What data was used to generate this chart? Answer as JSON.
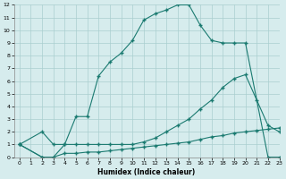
{
  "xlabel": "Humidex (Indice chaleur)",
  "background_color": "#d6eced",
  "grid_color": "#aacfcf",
  "line_color": "#1a7a70",
  "xlim": [
    -0.5,
    23
  ],
  "ylim": [
    0,
    12
  ],
  "xticks": [
    0,
    1,
    2,
    3,
    4,
    5,
    6,
    7,
    8,
    9,
    10,
    11,
    12,
    13,
    14,
    15,
    16,
    17,
    18,
    19,
    20,
    21,
    22,
    23
  ],
  "yticks": [
    0,
    1,
    2,
    3,
    4,
    5,
    6,
    7,
    8,
    9,
    10,
    11,
    12
  ],
  "line1_x": [
    0,
    2,
    3,
    4,
    5,
    6,
    7,
    8,
    9,
    10,
    11,
    12,
    13,
    14,
    15,
    16,
    17,
    18,
    19,
    20,
    22,
    23
  ],
  "line1_y": [
    1,
    2,
    1,
    1,
    3.2,
    3.2,
    6.4,
    7.5,
    8.2,
    9.2,
    10.8,
    11.3,
    11.6,
    12.0,
    12.0,
    10.4,
    9.2,
    9.0,
    9.0,
    9.0,
    0,
    0
  ],
  "line2_x": [
    0,
    2,
    3,
    4,
    5,
    6,
    7,
    8,
    9,
    10,
    11,
    12,
    13,
    14,
    15,
    16,
    17,
    18,
    19,
    20,
    21,
    22,
    23
  ],
  "line2_y": [
    1,
    0,
    0,
    1,
    1,
    1,
    1,
    1,
    1,
    1.0,
    1.2,
    1.5,
    2.0,
    2.5,
    3.0,
    3.8,
    4.5,
    5.5,
    6.2,
    6.5,
    4.5,
    2.5,
    2.0
  ],
  "line3_x": [
    0,
    2,
    3,
    4,
    5,
    6,
    7,
    8,
    9,
    10,
    11,
    12,
    13,
    14,
    15,
    16,
    17,
    18,
    19,
    20,
    21,
    22,
    23
  ],
  "line3_y": [
    1,
    0,
    0,
    0.3,
    0.3,
    0.4,
    0.4,
    0.5,
    0.6,
    0.7,
    0.8,
    0.9,
    1.0,
    1.1,
    1.2,
    1.4,
    1.6,
    1.7,
    1.9,
    2.0,
    2.1,
    2.2,
    2.3
  ]
}
